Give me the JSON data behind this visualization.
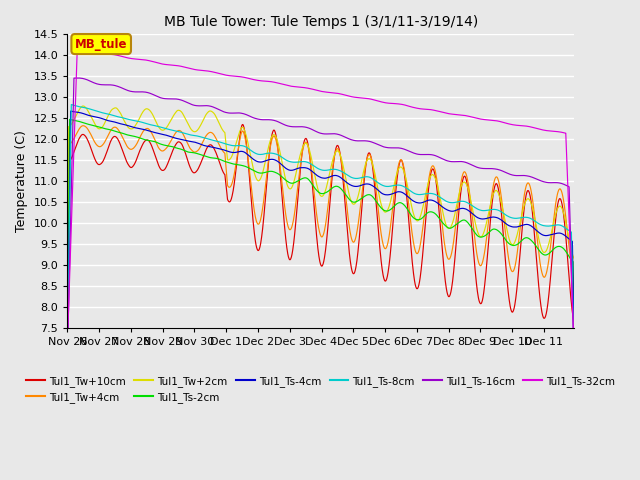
{
  "title": "MB Tule Tower: Tule Temps 1 (3/1/11-3/19/14)",
  "ylabel": "Temperature (C)",
  "bg_color": "#e8e8e8",
  "grid_color": "white",
  "legend_label": "MB_tule",
  "legend_bg": "#ffff00",
  "legend_border": "#b8860b",
  "ylim": [
    7.5,
    14.5
  ],
  "yticks": [
    7.5,
    8.0,
    8.5,
    9.0,
    9.5,
    10.0,
    10.5,
    11.0,
    11.5,
    12.0,
    12.5,
    13.0,
    13.5,
    14.0,
    14.5
  ],
  "series": [
    {
      "label": "Tul1_Tw+10cm",
      "color": "#dd0000"
    },
    {
      "label": "Tul1_Tw+4cm",
      "color": "#ff8800"
    },
    {
      "label": "Tul1_Tw+2cm",
      "color": "#dddd00"
    },
    {
      "label": "Tul1_Ts-2cm",
      "color": "#00dd00"
    },
    {
      "label": "Tul1_Ts-4cm",
      "color": "#0000cc"
    },
    {
      "label": "Tul1_Ts-8cm",
      "color": "#00cccc"
    },
    {
      "label": "Tul1_Ts-16cm",
      "color": "#9900cc"
    },
    {
      "label": "Tul1_Ts-32cm",
      "color": "#dd00dd"
    }
  ]
}
